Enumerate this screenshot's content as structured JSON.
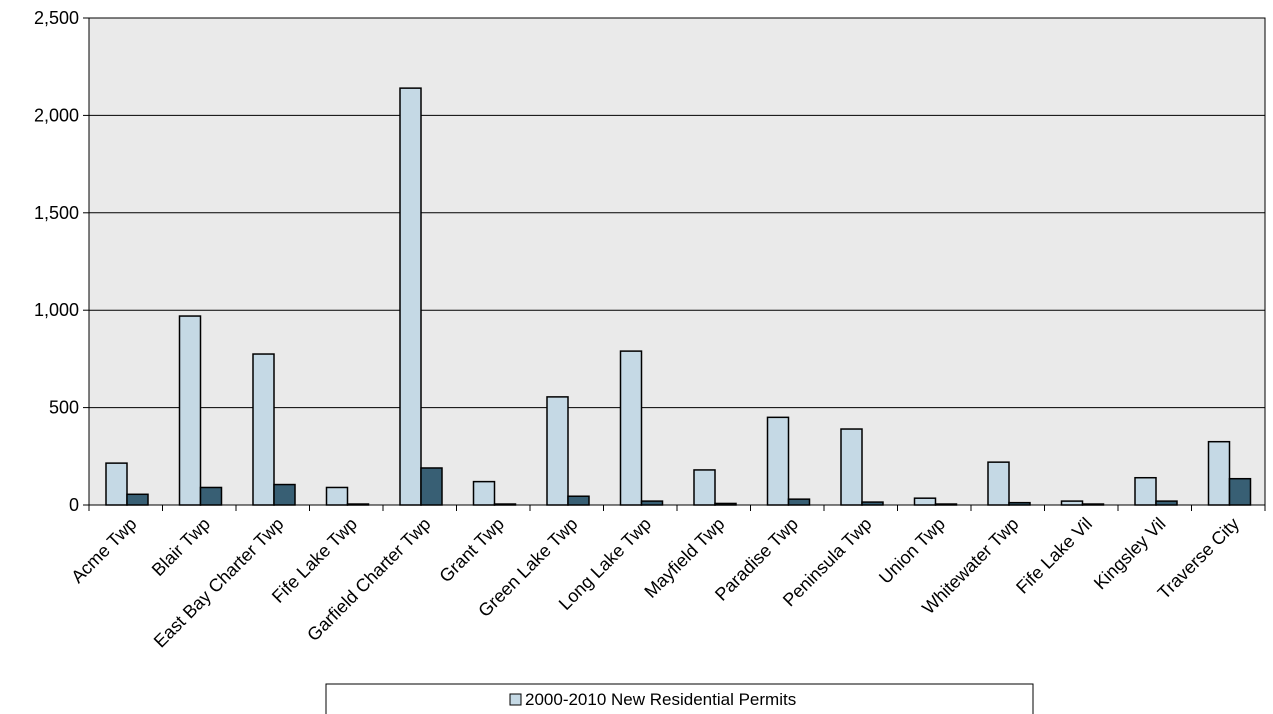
{
  "chart_data": {
    "type": "bar",
    "categories": [
      "Acme Twp",
      "Blair Twp",
      "East Bay Charter Twp",
      "Fife Lake Twp",
      "Garfield Charter Twp",
      "Grant Twp",
      "Green Lake Twp",
      "Long Lake Twp",
      "Mayfield Twp",
      "Paradise Twp",
      "Peninsula Twp",
      "Union Twp",
      "Whitewater Twp",
      "Fife Lake Vil",
      "Kingsley Vil",
      "Traverse City"
    ],
    "series": [
      {
        "name": "2000-2010 New Residential Permits",
        "color": "#c5d9e5",
        "values": [
          215,
          970,
          775,
          90,
          2140,
          120,
          555,
          790,
          180,
          450,
          390,
          35,
          220,
          20,
          140,
          325
        ]
      },
      {
        "color": "#385f74",
        "values": [
          55,
          90,
          105,
          5,
          190,
          5,
          45,
          20,
          8,
          30,
          15,
          5,
          12,
          5,
          20,
          135
        ]
      }
    ],
    "yticks": [
      "0",
      "500",
      "1,000",
      "1,500",
      "2,000",
      "2,500"
    ],
    "ylim": [
      0,
      2500
    ],
    "title": "",
    "xlabel": "",
    "ylabel": "",
    "grid": true,
    "legend_position": "bottom",
    "plot_background": "#eaeaea"
  }
}
